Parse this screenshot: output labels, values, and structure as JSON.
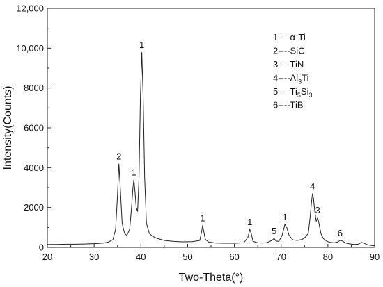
{
  "chart_data": {
    "type": "line",
    "xlabel": "Two-Theta(°)",
    "ylabel": "Intensity(Counts)",
    "xlim": [
      20,
      90
    ],
    "ylim": [
      0,
      12000
    ],
    "xticks": [
      20,
      30,
      40,
      50,
      60,
      70,
      80,
      90
    ],
    "xtick_labels": [
      "20",
      "30",
      "40",
      "50",
      "60",
      "70",
      "80",
      "90"
    ],
    "yticks": [
      0,
      2000,
      4000,
      6000,
      8000,
      10000,
      12000
    ],
    "ytick_labels": [
      "0",
      "2000",
      "4000",
      "6000",
      "8000",
      "10,000",
      "12,000"
    ],
    "grid": false,
    "legend_position": "top-right",
    "legend": [
      {
        "prefix": "1----",
        "name": "α-Ti",
        "sub": []
      },
      {
        "prefix": "2----",
        "name": "SiC",
        "sub": []
      },
      {
        "prefix": "3----",
        "name": "TiN",
        "sub": []
      },
      {
        "prefix": "4----",
        "name": "Al3Ti",
        "parts": [
          {
            "t": "Al"
          },
          {
            "t": "3",
            "sub": true
          },
          {
            "t": "Ti"
          }
        ]
      },
      {
        "prefix": "5----",
        "name": "Ti5Si3",
        "parts": [
          {
            "t": "Ti"
          },
          {
            "t": "5",
            "sub": true
          },
          {
            "t": "Si"
          },
          {
            "t": "3",
            "sub": true
          }
        ]
      },
      {
        "prefix": "6----",
        "name": "TiB",
        "sub": []
      }
    ],
    "peaks": [
      {
        "label": "2",
        "x": 35.3,
        "y": 4200
      },
      {
        "label": "1",
        "x": 38.5,
        "y": 3400
      },
      {
        "label": "1",
        "x": 40.2,
        "y": 9800
      },
      {
        "label": "1",
        "x": 53.2,
        "y": 1100
      },
      {
        "label": "1",
        "x": 63.3,
        "y": 900
      },
      {
        "label": "5",
        "x": 68.5,
        "y": 450
      },
      {
        "label": "1",
        "x": 70.8,
        "y": 1150
      },
      {
        "label": "4",
        "x": 76.7,
        "y": 2700
      },
      {
        "label": "3",
        "x": 77.8,
        "y": 1500
      },
      {
        "label": "6",
        "x": 82.6,
        "y": 350
      }
    ],
    "series": [
      {
        "color": "#222222",
        "x": [
          20,
          22,
          24,
          26,
          28,
          30,
          31,
          32,
          33,
          34,
          34.6,
          35.0,
          35.3,
          35.6,
          36.0,
          36.5,
          37.0,
          37.6,
          38.0,
          38.3,
          38.5,
          38.7,
          39.0,
          39.3,
          39.6,
          39.9,
          40.2,
          40.5,
          40.8,
          41.2,
          41.8,
          42.5,
          43.5,
          45,
          47,
          49,
          51,
          52.6,
          53.0,
          53.2,
          53.4,
          53.8,
          54.5,
          56,
          58,
          60,
          62,
          62.9,
          63.3,
          63.6,
          64.0,
          65,
          66,
          67,
          68.0,
          68.5,
          68.9,
          69.5,
          70.2,
          70.8,
          71.2,
          71.7,
          72.5,
          73.5,
          74.5,
          75.2,
          75.8,
          76.2,
          76.5,
          76.7,
          76.9,
          77.2,
          77.5,
          77.8,
          78.1,
          78.5,
          79.0,
          79.8,
          80.5,
          81.3,
          82.0,
          82.6,
          83.1,
          83.8,
          84.5,
          85.5,
          86.5,
          87.2,
          87.8,
          88.5,
          89.2,
          90
        ],
        "y": [
          150,
          150,
          160,
          160,
          170,
          190,
          200,
          220,
          260,
          380,
          900,
          2600,
          4200,
          3000,
          1200,
          700,
          600,
          900,
          2000,
          3000,
          3400,
          2900,
          2000,
          1800,
          3500,
          7500,
          9800,
          7500,
          3500,
          1200,
          700,
          550,
          450,
          350,
          300,
          280,
          290,
          350,
          800,
          1100,
          850,
          400,
          270,
          220,
          210,
          210,
          230,
          500,
          900,
          700,
          300,
          230,
          220,
          240,
          350,
          450,
          320,
          300,
          600,
          1150,
          1000,
          600,
          380,
          350,
          400,
          520,
          700,
          1500,
          2300,
          2700,
          2500,
          1800,
          1300,
          1500,
          1200,
          700,
          450,
          300,
          250,
          230,
          260,
          350,
          320,
          220,
          180,
          150,
          160,
          250,
          200,
          130,
          100,
          80
        ]
      }
    ]
  }
}
